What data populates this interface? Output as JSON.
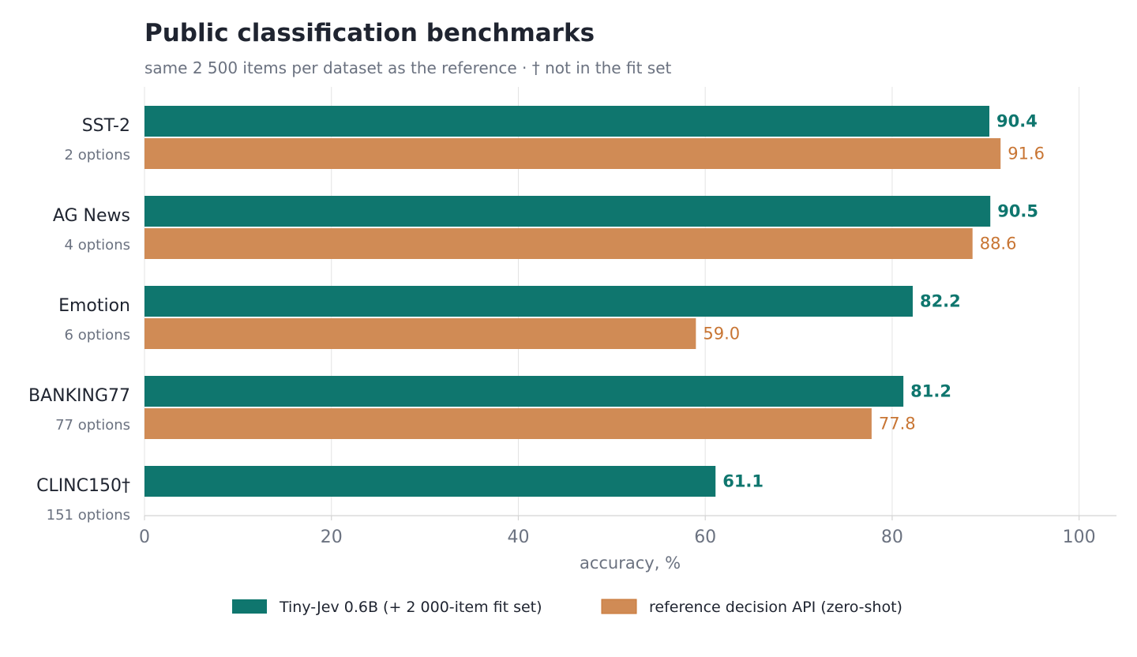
{
  "chart_data": {
    "type": "bar",
    "orientation": "horizontal",
    "title": "Public classification benchmarks",
    "subtitle": "same 2 500 items per dataset as the reference · † not in the fit set",
    "xlabel": "accuracy, %",
    "xlim": [
      0,
      104
    ],
    "xticks": [
      0,
      20,
      40,
      60,
      80,
      100
    ],
    "grid": true,
    "legend_position": "bottom",
    "categories": [
      {
        "name": "SST-2",
        "sub": "2 options"
      },
      {
        "name": "AG News",
        "sub": "4 options"
      },
      {
        "name": "Emotion",
        "sub": "6 options"
      },
      {
        "name": "BANKING77",
        "sub": "77 options"
      },
      {
        "name": "CLINC150†",
        "sub": "151 options"
      }
    ],
    "series": [
      {
        "name": "Tiny-Jev 0.6B (+ 2 000-item fit set)",
        "color": "#0f766e",
        "values": [
          90.4,
          90.5,
          82.2,
          81.2,
          61.1
        ],
        "labels": [
          "90.4",
          "90.5",
          "82.2",
          "81.2",
          "61.1"
        ]
      },
      {
        "name": "reference decision API (zero-shot)",
        "color": "#d08b55",
        "label_color": "#c87533",
        "values": [
          91.6,
          88.6,
          59.0,
          77.8,
          null
        ],
        "labels": [
          "91.6",
          "88.6",
          "59.0",
          "77.8",
          null
        ]
      }
    ]
  }
}
